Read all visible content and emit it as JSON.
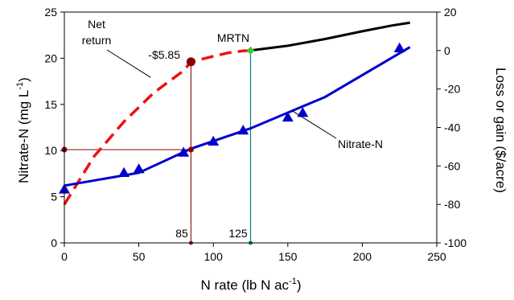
{
  "chart_data": {
    "type": "line",
    "x_axis": {
      "label_main": "N rate (lb N ac",
      "label_sup": "-1",
      "label_end": ")",
      "ticks": [
        0,
        50,
        100,
        150,
        200,
        250
      ],
      "lim": [
        0,
        250
      ]
    },
    "y_left": {
      "label_main": "Nitrate-N (mg L",
      "label_sup": "-1",
      "label_end": ")",
      "ticks": [
        0,
        5,
        10,
        15,
        20,
        25
      ],
      "lim": [
        0,
        25
      ]
    },
    "y_right": {
      "label": "Loss or gain ($/acre)",
      "ticks": [
        20,
        0,
        -20,
        -40,
        -60,
        -80,
        -100
      ],
      "lim": [
        -100,
        20
      ]
    },
    "series": [
      {
        "name": "Nitrate-N",
        "axis": "left",
        "color": "#0000CC",
        "style": "solid",
        "marker": "triangle",
        "points": [
          [
            0,
            5.8
          ],
          [
            40,
            7.6
          ],
          [
            50,
            8.0
          ],
          [
            80,
            9.8
          ],
          [
            100,
            11.0
          ],
          [
            120,
            12.2
          ],
          [
            150,
            13.6
          ],
          [
            160,
            14.1
          ],
          [
            225,
            21.1
          ]
        ],
        "fit": [
          [
            0,
            6.2
          ],
          [
            50,
            7.6
          ],
          [
            85,
            10.2
          ],
          [
            125,
            12.4
          ],
          [
            175,
            15.8
          ],
          [
            232,
            21.2
          ]
        ]
      },
      {
        "name": "Net return",
        "axis": "right",
        "color": "#EE1111",
        "style": "dashed",
        "curve": [
          [
            0,
            -80
          ],
          [
            20,
            -55
          ],
          [
            40,
            -37
          ],
          [
            60,
            -22
          ],
          [
            80,
            -10.5
          ],
          [
            85,
            -5.85
          ],
          [
            100,
            -3
          ],
          [
            110,
            -1.2
          ],
          [
            120,
            -0.2
          ],
          [
            125,
            0
          ]
        ],
        "continuation_color": "#000000",
        "continuation": [
          [
            125,
            0
          ],
          [
            150,
            2.5
          ],
          [
            175,
            6
          ],
          [
            200,
            10
          ],
          [
            220,
            13
          ],
          [
            232,
            14.5
          ]
        ]
      }
    ],
    "annotations": {
      "net_return_label_line1": "Net",
      "net_return_label_line2": "return",
      "nitrate_label": "Nitrate-N",
      "mrtn_label": "MRTN",
      "value_label": "-$5.85",
      "x85_label": "85",
      "x125_label": "125"
    },
    "reference_lines": {
      "x85": 85,
      "y85_left": 10.1,
      "y85_right": -5.85,
      "line85_color": "#8B2323",
      "x125": 125,
      "y125_right": 0,
      "line125_color": "#008080",
      "marker_color": "#8B0000",
      "mrtn_marker_color": "#33CC33"
    }
  }
}
